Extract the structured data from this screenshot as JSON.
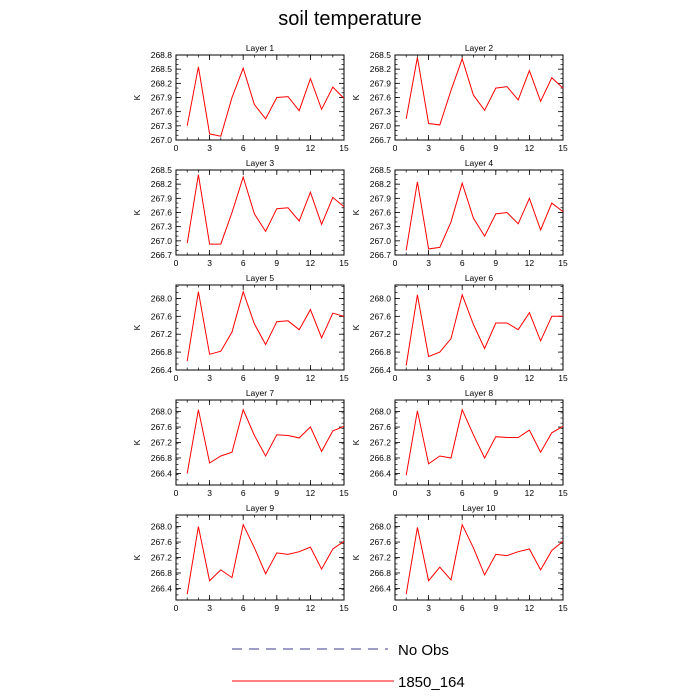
{
  "title": "soil temperature",
  "ylabel": "K",
  "legend": {
    "entries": [
      {
        "label": "No Obs",
        "style": "dashed",
        "color": "#3b3b8f"
      },
      {
        "label": "1850_164",
        "style": "solid",
        "color": "#ff0000"
      }
    ]
  },
  "colors": {
    "series": "#ff0000"
  },
  "chart_data": [
    {
      "type": "line",
      "title": "Layer 1",
      "ylabel": "K",
      "xlim": [
        0,
        15
      ],
      "xticks": [
        0,
        3,
        6,
        9,
        12,
        15
      ],
      "ylim": [
        267.0,
        268.8
      ],
      "yticks": [
        267.0,
        267.3,
        267.6,
        267.9,
        268.2,
        268.5,
        268.8
      ],
      "series": [
        {
          "name": "1850_164",
          "x": [
            1,
            2,
            3,
            4,
            5,
            6,
            7,
            8,
            9,
            10,
            11,
            12,
            13,
            14,
            15
          ],
          "y": [
            267.3,
            268.55,
            267.13,
            267.08,
            267.9,
            268.52,
            267.75,
            267.45,
            267.9,
            267.92,
            267.62,
            268.3,
            267.65,
            268.12,
            267.88
          ]
        }
      ]
    },
    {
      "type": "line",
      "title": "Layer 2",
      "ylabel": "K",
      "xlim": [
        0,
        15
      ],
      "xticks": [
        0,
        3,
        6,
        9,
        12,
        15
      ],
      "ylim": [
        266.7,
        268.5
      ],
      "yticks": [
        266.7,
        267.0,
        267.3,
        267.6,
        267.9,
        268.2,
        268.5
      ],
      "series": [
        {
          "name": "1850_164",
          "x": [
            1,
            2,
            3,
            4,
            5,
            6,
            7,
            8,
            9,
            10,
            11,
            12,
            13,
            14,
            15
          ],
          "y": [
            267.15,
            268.45,
            267.05,
            267.02,
            267.75,
            268.42,
            267.65,
            267.33,
            267.8,
            267.83,
            267.55,
            268.17,
            267.52,
            268.02,
            267.8
          ]
        }
      ]
    },
    {
      "type": "line",
      "title": "Layer 3",
      "ylabel": "K",
      "xlim": [
        0,
        15
      ],
      "xticks": [
        0,
        3,
        6,
        9,
        12,
        15
      ],
      "ylim": [
        266.7,
        268.5
      ],
      "yticks": [
        266.7,
        267.0,
        267.3,
        267.6,
        267.9,
        268.2,
        268.5
      ],
      "series": [
        {
          "name": "1850_164",
          "x": [
            1,
            2,
            3,
            4,
            5,
            6,
            7,
            8,
            9,
            10,
            11,
            12,
            13,
            14,
            15
          ],
          "y": [
            266.95,
            268.4,
            266.93,
            266.93,
            267.6,
            268.35,
            267.57,
            267.2,
            267.68,
            267.7,
            267.42,
            268.03,
            267.35,
            267.92,
            267.72
          ]
        }
      ]
    },
    {
      "type": "line",
      "title": "Layer 4",
      "ylabel": "K",
      "xlim": [
        0,
        15
      ],
      "xticks": [
        0,
        3,
        6,
        9,
        12,
        15
      ],
      "ylim": [
        266.7,
        268.5
      ],
      "yticks": [
        266.7,
        267.0,
        267.3,
        267.6,
        267.9,
        268.2,
        268.5
      ],
      "series": [
        {
          "name": "1850_164",
          "x": [
            1,
            2,
            3,
            4,
            5,
            6,
            7,
            8,
            9,
            10,
            11,
            12,
            13,
            14,
            15
          ],
          "y": [
            266.8,
            268.25,
            266.83,
            266.86,
            267.4,
            268.22,
            267.48,
            267.1,
            267.57,
            267.6,
            267.36,
            267.9,
            267.23,
            267.8,
            267.62
          ]
        }
      ]
    },
    {
      "type": "line",
      "title": "Layer 5",
      "ylabel": "K",
      "xlim": [
        0,
        15
      ],
      "xticks": [
        0,
        3,
        6,
        9,
        12,
        15
      ],
      "ylim": [
        266.4,
        268.3
      ],
      "yticks": [
        266.4,
        266.8,
        267.2,
        267.6,
        268.0
      ],
      "series": [
        {
          "name": "1850_164",
          "x": [
            1,
            2,
            3,
            4,
            5,
            6,
            7,
            8,
            9,
            10,
            11,
            12,
            13,
            14,
            15
          ],
          "y": [
            266.6,
            268.15,
            266.75,
            266.82,
            267.25,
            268.15,
            267.43,
            266.97,
            267.48,
            267.5,
            267.3,
            267.75,
            267.12,
            267.67,
            267.6
          ]
        }
      ]
    },
    {
      "type": "line",
      "title": "Layer 6",
      "ylabel": "K",
      "xlim": [
        0,
        15
      ],
      "xticks": [
        0,
        3,
        6,
        9,
        12,
        15
      ],
      "ylim": [
        266.4,
        268.3
      ],
      "yticks": [
        266.4,
        266.8,
        267.2,
        267.6,
        268.0
      ],
      "series": [
        {
          "name": "1850_164",
          "x": [
            1,
            2,
            3,
            4,
            5,
            6,
            7,
            8,
            9,
            10,
            11,
            12,
            13,
            14,
            15
          ],
          "y": [
            266.5,
            268.08,
            266.7,
            266.8,
            267.1,
            268.08,
            267.42,
            266.88,
            267.45,
            267.45,
            267.3,
            267.68,
            267.05,
            267.6,
            267.6
          ]
        }
      ]
    },
    {
      "type": "line",
      "title": "Layer 7",
      "ylabel": "K",
      "xlim": [
        0,
        15
      ],
      "xticks": [
        0,
        3,
        6,
        9,
        12,
        15
      ],
      "ylim": [
        266.1,
        268.3
      ],
      "yticks": [
        266.4,
        266.8,
        267.2,
        267.6,
        268.0
      ],
      "series": [
        {
          "name": "1850_164",
          "x": [
            1,
            2,
            3,
            4,
            5,
            6,
            7,
            8,
            9,
            10,
            11,
            12,
            13,
            14,
            15
          ],
          "y": [
            266.4,
            268.05,
            266.67,
            266.85,
            266.95,
            268.05,
            267.38,
            266.85,
            267.4,
            267.38,
            267.32,
            267.6,
            266.97,
            267.5,
            267.62
          ]
        }
      ]
    },
    {
      "type": "line",
      "title": "Layer 8",
      "ylabel": "K",
      "xlim": [
        0,
        15
      ],
      "xticks": [
        0,
        3,
        6,
        9,
        12,
        15
      ],
      "ylim": [
        266.1,
        268.3
      ],
      "yticks": [
        266.4,
        266.8,
        267.2,
        267.6,
        268.0
      ],
      "series": [
        {
          "name": "1850_164",
          "x": [
            1,
            2,
            3,
            4,
            5,
            6,
            7,
            8,
            9,
            10,
            11,
            12,
            13,
            14,
            15
          ],
          "y": [
            266.35,
            268.02,
            266.65,
            266.85,
            266.8,
            268.05,
            267.4,
            266.8,
            267.35,
            267.33,
            267.33,
            267.52,
            266.95,
            267.45,
            267.62
          ]
        }
      ]
    },
    {
      "type": "line",
      "title": "Layer 9",
      "ylabel": "K",
      "xlim": [
        0,
        15
      ],
      "xticks": [
        0,
        3,
        6,
        9,
        12,
        15
      ],
      "ylim": [
        266.1,
        268.3
      ],
      "yticks": [
        266.4,
        266.8,
        267.2,
        267.6,
        268.0
      ],
      "series": [
        {
          "name": "1850_164",
          "x": [
            1,
            2,
            3,
            4,
            5,
            6,
            7,
            8,
            9,
            10,
            11,
            12,
            13,
            14,
            15
          ],
          "y": [
            266.25,
            268.0,
            266.6,
            266.88,
            266.68,
            268.05,
            267.45,
            266.78,
            267.32,
            267.28,
            267.35,
            267.47,
            266.9,
            267.42,
            267.62
          ]
        }
      ]
    },
    {
      "type": "line",
      "title": "Layer 10",
      "ylabel": "K",
      "xlim": [
        0,
        15
      ],
      "xticks": [
        0,
        3,
        6,
        9,
        12,
        15
      ],
      "ylim": [
        266.1,
        268.3
      ],
      "yticks": [
        266.4,
        266.8,
        267.2,
        267.6,
        268.0
      ],
      "series": [
        {
          "name": "1850_164",
          "x": [
            1,
            2,
            3,
            4,
            5,
            6,
            7,
            8,
            9,
            10,
            11,
            12,
            13,
            14,
            15
          ],
          "y": [
            266.25,
            267.98,
            266.6,
            266.95,
            266.62,
            268.05,
            267.45,
            266.75,
            267.28,
            267.25,
            267.35,
            267.42,
            266.88,
            267.38,
            267.62
          ]
        }
      ]
    }
  ]
}
